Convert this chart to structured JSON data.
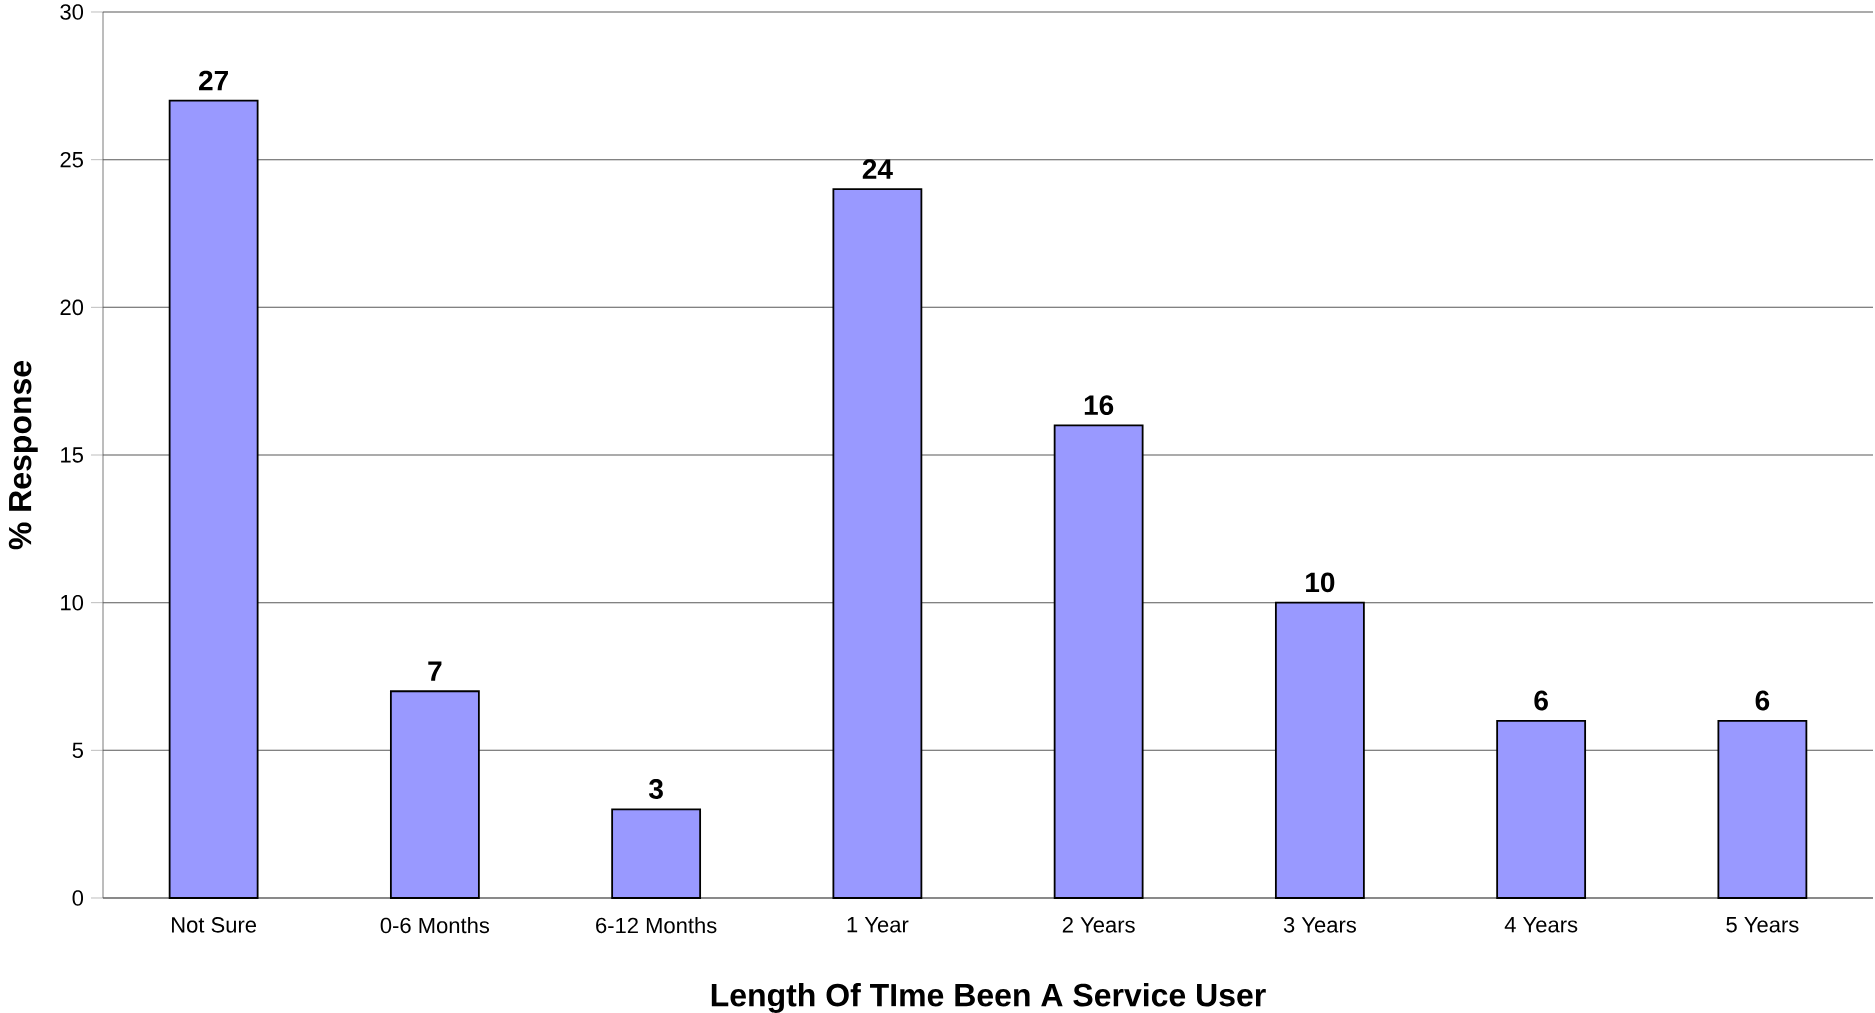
{
  "chart_data": {
    "type": "bar",
    "xlabel": "Length Of TIme Been A Service User",
    "ylabel": "% Response",
    "categories": [
      "Not Sure",
      "0-6 Months",
      "6-12 Months",
      "1 Year",
      "2 Years",
      "3 Years",
      "4 Years",
      "5 Years"
    ],
    "values": [
      27,
      7,
      3,
      24,
      16,
      10,
      6,
      6
    ],
    "color": "#9999ff",
    "ylim": [
      0,
      30
    ],
    "yticks": [
      0,
      5,
      10,
      15,
      20,
      25,
      30
    ],
    "grid": "y",
    "data_labels": true
  }
}
